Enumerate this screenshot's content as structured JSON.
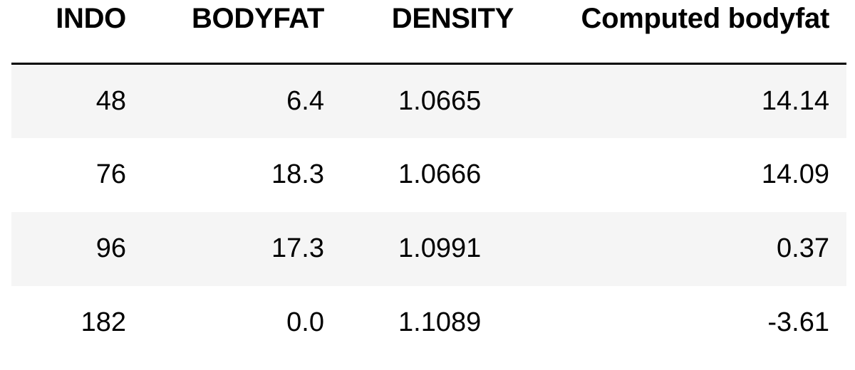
{
  "table": {
    "columns": [
      "INDO",
      "BODYFAT",
      "DENSITY",
      "Computed bodyfat"
    ],
    "rows": [
      {
        "indo": "48",
        "bodyfat": "6.4",
        "density": "1.0665",
        "computed": "14.14"
      },
      {
        "indo": "76",
        "bodyfat": "18.3",
        "density": "1.0666",
        "computed": "14.09"
      },
      {
        "indo": "96",
        "bodyfat": "17.3",
        "density": "1.0991",
        "computed": "0.37"
      },
      {
        "indo": "182",
        "bodyfat": "0.0",
        "density": "1.1089",
        "computed": "-3.61"
      }
    ]
  },
  "colors": {
    "stripe": "#f5f5f5",
    "header_rule": "#000000",
    "text": "#000000"
  }
}
